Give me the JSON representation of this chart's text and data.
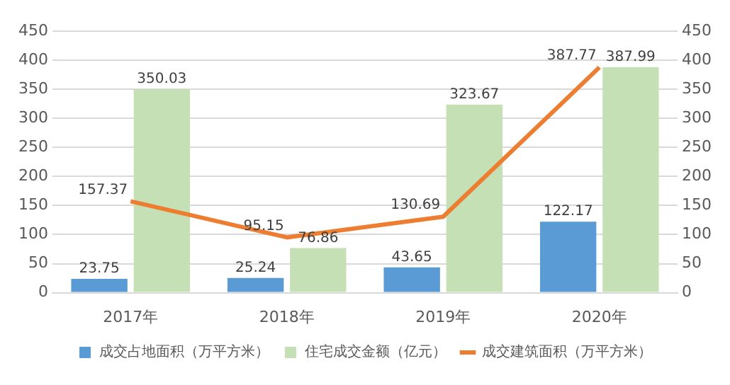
{
  "chart_data": {
    "type": "bar",
    "categories": [
      "2017年",
      "2018年",
      "2019年",
      "2020年"
    ],
    "series": [
      {
        "name": "成交占地面积（万平方米）",
        "color": "#5b9bd5",
        "values": [
          23.75,
          25.24,
          43.65,
          122.17
        ]
      },
      {
        "name": "住宅成交金额（亿元）",
        "color": "#c5e0b4",
        "values": [
          350.03,
          76.86,
          323.67,
          387.99
        ]
      },
      {
        "name": "成交建筑面积（万平方米）",
        "type": "line",
        "color": "#ed7d31",
        "values": [
          157.37,
          95.15,
          130.69,
          387.77
        ]
      }
    ],
    "ylim": [
      0,
      450
    ],
    "yticks": [
      0,
      50,
      100,
      150,
      200,
      250,
      300,
      350,
      400,
      450
    ],
    "y2lim": [
      0,
      450
    ],
    "y2ticks": [
      0,
      50,
      100,
      150,
      200,
      250,
      300,
      350,
      400,
      450
    ],
    "grid": "y",
    "legend": "bottom",
    "data_labels": true,
    "marker": "none"
  }
}
